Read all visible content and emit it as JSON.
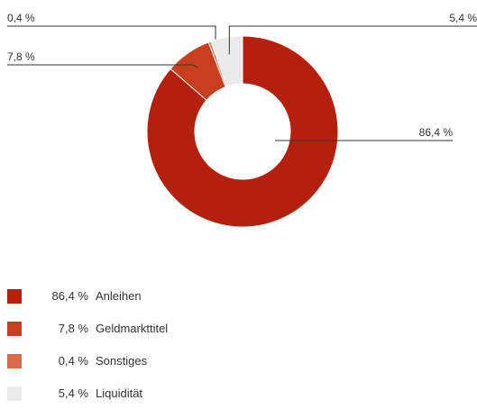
{
  "chart_data": {
    "type": "pie",
    "donut": true,
    "slices": [
      {
        "label": "Anleihen",
        "value": 86.4,
        "value_label": "86,4 %",
        "color": "#b5200d"
      },
      {
        "label": "Geldmarkttitel",
        "value": 7.8,
        "value_label": "7,8 %",
        "color": "#c83f1f"
      },
      {
        "label": "Sonstiges",
        "value": 0.4,
        "value_label": "0,4 %",
        "color": "#d96a4a"
      },
      {
        "label": "Liquidität",
        "value": 5.4,
        "value_label": "5,4 %",
        "color": "#ebebeb"
      }
    ],
    "legend_position": "bottom-left"
  }
}
